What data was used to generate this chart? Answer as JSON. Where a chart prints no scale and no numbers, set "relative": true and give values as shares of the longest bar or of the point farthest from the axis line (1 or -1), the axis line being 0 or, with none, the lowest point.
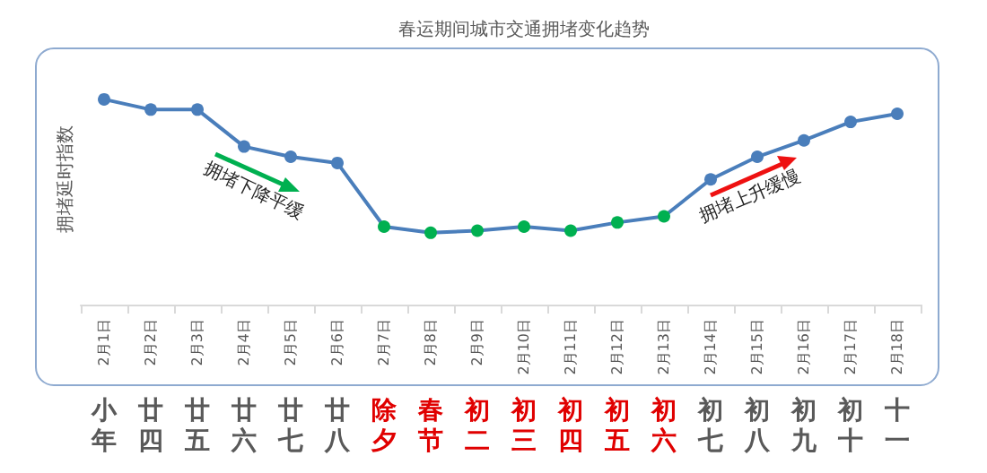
{
  "chart_data": {
    "type": "line",
    "title": "春运期间城市交通拥堵变化趋势",
    "ylabel": "拥堵延时指数",
    "relative": true,
    "marker": "circle",
    "categories": [
      "2月1日",
      "2月2日",
      "2月3日",
      "2月4日",
      "2月5日",
      "2月6日",
      "2月7日",
      "2月8日",
      "2月9日",
      "2月10日",
      "2月11日",
      "2月12日",
      "2月13日",
      "2月14日",
      "2月15日",
      "2月16日",
      "2月17日",
      "2月18日"
    ],
    "series": [
      {
        "color": "#4a7ebb",
        "colors": [
          "#4a7ebb",
          "#4a7ebb",
          "#4a7ebb",
          "#4a7ebb",
          "#4a7ebb",
          "#4a7ebb",
          "#00b050",
          "#00b050",
          "#00b050",
          "#00b050",
          "#00b050",
          "#00b050",
          "#00b050",
          "#4a7ebb",
          "#4a7ebb",
          "#4a7ebb",
          "#4a7ebb",
          "#4a7ebb"
        ],
        "values": [
          1,
          0.95,
          0.95,
          0.77,
          0.72,
          0.69,
          0.38,
          0.35,
          0.36,
          0.38,
          0.36,
          0.4,
          0.43,
          0.61,
          0.72,
          0.8,
          0.89,
          0.93
        ]
      }
    ],
    "annotations": [
      "拥堵下降平缓",
      "拥堵上升缓慢",
      "小年",
      "廿四",
      "廿五",
      "廿六",
      "廿七",
      "廿八",
      "除夕",
      "春节",
      "初二",
      "初三",
      "初四",
      "初五",
      "初六",
      "初七",
      "初八",
      "初九",
      "初十",
      "十一"
    ]
  }
}
